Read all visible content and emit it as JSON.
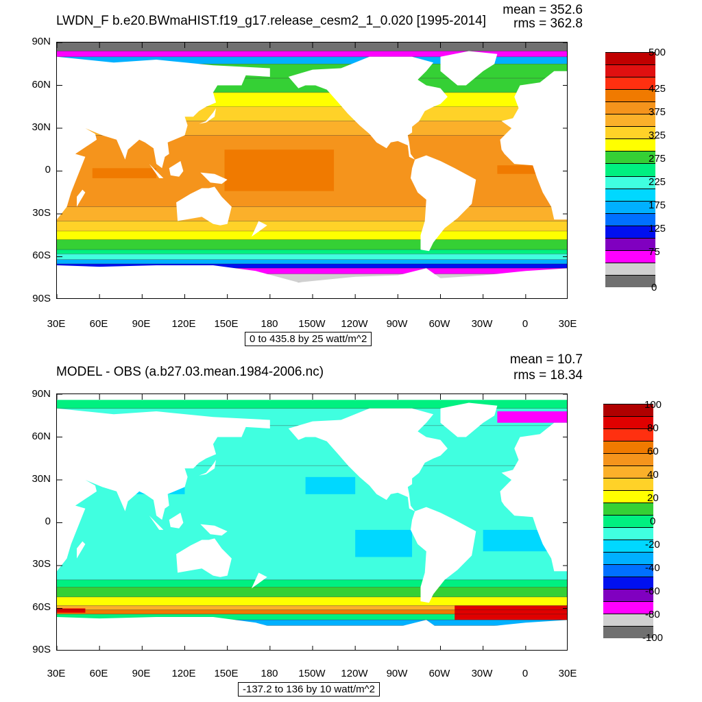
{
  "top": {
    "title": "LWDN_F b.e20.BWmaHIST.f19_g17.release_cesm2_1_0.020 [1995-2014]",
    "mean_text": "mean = 352.6",
    "rms_text": "rms = 362.8",
    "range_text": "0 to 435.8 by 25 watt/m^2",
    "colorbar_labels": [
      "500",
      "425",
      "375",
      "325",
      "275",
      "225",
      "175",
      "125",
      "75",
      "0"
    ],
    "colors": [
      "#c00000",
      "#e01010",
      "#ff3010",
      "#f07a00",
      "#f5941c",
      "#fbb02a",
      "#ffd228",
      "#ffff00",
      "#35d035",
      "#00f080",
      "#40ffe0",
      "#00d8ff",
      "#00b0ff",
      "#0070ff",
      "#0010f0",
      "#8000c0",
      "#ff00ff",
      "#d0d0d0",
      "#707070"
    ]
  },
  "bottom": {
    "title": "MODEL - OBS (a.b27.03.mean.1984-2006.nc)",
    "mean_text": "mean = 10.7",
    "rms_text": "rms = 18.34",
    "range_text": "-137.2 to 136 by 10 watt/m^2",
    "colorbar_labels": [
      "100",
      "80",
      "60",
      "40",
      "20",
      "0",
      "-20",
      "-40",
      "-60",
      "-80",
      "-100"
    ],
    "colors": [
      "#b00000",
      "#e00000",
      "#ff3010",
      "#f07a00",
      "#f5941c",
      "#fbb02a",
      "#ffd228",
      "#ffff00",
      "#35d035",
      "#00f080",
      "#40ffe0",
      "#00d8ff",
      "#00b0ff",
      "#0070ff",
      "#0010f0",
      "#8000c0",
      "#ff00ff",
      "#d0d0d0",
      "#707070"
    ]
  },
  "chart_data": [
    {
      "type": "heatmap",
      "title": "LWDN_F b.e20.BWmaHIST.f19_g17.release_cesm2_1_0.020 [1995-2014]",
      "units": "watt/m^2",
      "mean": 352.6,
      "rms": 362.8,
      "contour_min": 0,
      "contour_max": 435.8,
      "contour_interval": 25,
      "colorbar_ticks": [
        500,
        425,
        375,
        325,
        275,
        225,
        175,
        125,
        75,
        0
      ],
      "xticks": [
        "30E",
        "60E",
        "90E",
        "120E",
        "150E",
        "180",
        "150W",
        "120W",
        "90W",
        "60W",
        "30W",
        "0",
        "30E"
      ],
      "yticks": [
        "90N",
        "60N",
        "30N",
        "0",
        "30S",
        "60S",
        "90S"
      ],
      "xlim": [
        30,
        390
      ],
      "ylim": [
        -90,
        90
      ],
      "zonal_bands": [
        {
          "lat": [
            84,
            90
          ],
          "value": 0
        },
        {
          "lat": [
            80,
            84
          ],
          "value": 90
        },
        {
          "lat": [
            75,
            80
          ],
          "value": 200
        },
        {
          "lat": [
            65,
            75
          ],
          "value": 300
        },
        {
          "lat": [
            55,
            65
          ],
          "value": 320
        },
        {
          "lat": [
            45,
            55
          ],
          "value": 335
        },
        {
          "lat": [
            35,
            45
          ],
          "value": 355
        },
        {
          "lat": [
            25,
            35
          ],
          "value": 385
        },
        {
          "lat": [
            -25,
            25
          ],
          "value": 410
        },
        {
          "lat": [
            -35,
            -25
          ],
          "value": 385
        },
        {
          "lat": [
            -42,
            -35
          ],
          "value": 355
        },
        {
          "lat": [
            -48,
            -42
          ],
          "value": 335
        },
        {
          "lat": [
            -55,
            -48
          ],
          "value": 320
        },
        {
          "lat": [
            -58,
            -55
          ],
          "value": 290
        },
        {
          "lat": [
            -62,
            -58
          ],
          "value": 260
        },
        {
          "lat": [
            -65,
            -62
          ],
          "value": 220
        },
        {
          "lat": [
            -68,
            -65
          ],
          "value": 160
        },
        {
          "lat": [
            -72,
            -68
          ],
          "value": 90
        },
        {
          "lat": [
            -78,
            -72
          ],
          "value": 60
        }
      ],
      "max_patches": [
        {
          "lon": [
            55,
            100
          ],
          "lat": [
            -5,
            2
          ],
          "value": 440
        },
        {
          "lon": [
            148,
            225
          ],
          "lat": [
            -14,
            15
          ],
          "value": 440
        },
        {
          "lon": [
            340,
            367
          ],
          "lat": [
            -2,
            4
          ],
          "value": 440
        }
      ]
    },
    {
      "type": "heatmap",
      "title": "MODEL - OBS (a.b27.03.mean.1984-2006.nc)",
      "units": "watt/m^2",
      "mean": 10.7,
      "rms": 18.34,
      "contour_min": -137.2,
      "contour_max": 136,
      "contour_interval": 10,
      "colorbar_ticks": [
        100,
        80,
        60,
        40,
        20,
        0,
        -20,
        -40,
        -60,
        -80,
        -100
      ],
      "xticks": [
        "30E",
        "60E",
        "90E",
        "120E",
        "150E",
        "180",
        "150W",
        "120W",
        "90W",
        "60W",
        "30W",
        "0",
        "30E"
      ],
      "yticks": [
        "90N",
        "60N",
        "30N",
        "0",
        "30S",
        "60S",
        "90S"
      ],
      "xlim": [
        30,
        390
      ],
      "ylim": [
        -90,
        90
      ],
      "zonal_bands": [
        {
          "lat": [
            80,
            86
          ],
          "value": 10
        },
        {
          "lat": [
            68,
            80
          ],
          "value": 5
        },
        {
          "lat": [
            40,
            68
          ],
          "value": 8
        },
        {
          "lat": [
            -40,
            40
          ],
          "value": 5
        },
        {
          "lat": [
            -45,
            -40
          ],
          "value": 12
        },
        {
          "lat": [
            -52,
            -45
          ],
          "value": 20
        },
        {
          "lat": [
            -58,
            -52
          ],
          "value": 30
        },
        {
          "lat": [
            -61,
            -58
          ],
          "value": 55
        },
        {
          "lat": [
            -64,
            -61
          ],
          "value": 75
        },
        {
          "lat": [
            -68,
            -64
          ],
          "value": 15
        },
        {
          "lat": [
            -72,
            -68
          ],
          "value": -20
        }
      ],
      "patches": [
        {
          "lon": [
            205,
            240
          ],
          "lat": [
            20,
            32
          ],
          "value": -8
        },
        {
          "lon": [
            240,
            280
          ],
          "lat": [
            -24,
            -5
          ],
          "value": -8
        },
        {
          "lon": [
            330,
            380
          ],
          "lat": [
            -20,
            -5
          ],
          "value": -8
        },
        {
          "lon": [
            80,
            120
          ],
          "lat": [
            20,
            30
          ],
          "value": -5
        },
        {
          "lon": [
            310,
            390
          ],
          "lat": [
            -68,
            -58
          ],
          "value": 90
        },
        {
          "lon": [
            30,
            50
          ],
          "lat": [
            -63,
            -60
          ],
          "value": 95
        },
        {
          "lon": [
            340,
            390
          ],
          "lat": [
            70,
            78
          ],
          "value": -70
        }
      ]
    }
  ]
}
